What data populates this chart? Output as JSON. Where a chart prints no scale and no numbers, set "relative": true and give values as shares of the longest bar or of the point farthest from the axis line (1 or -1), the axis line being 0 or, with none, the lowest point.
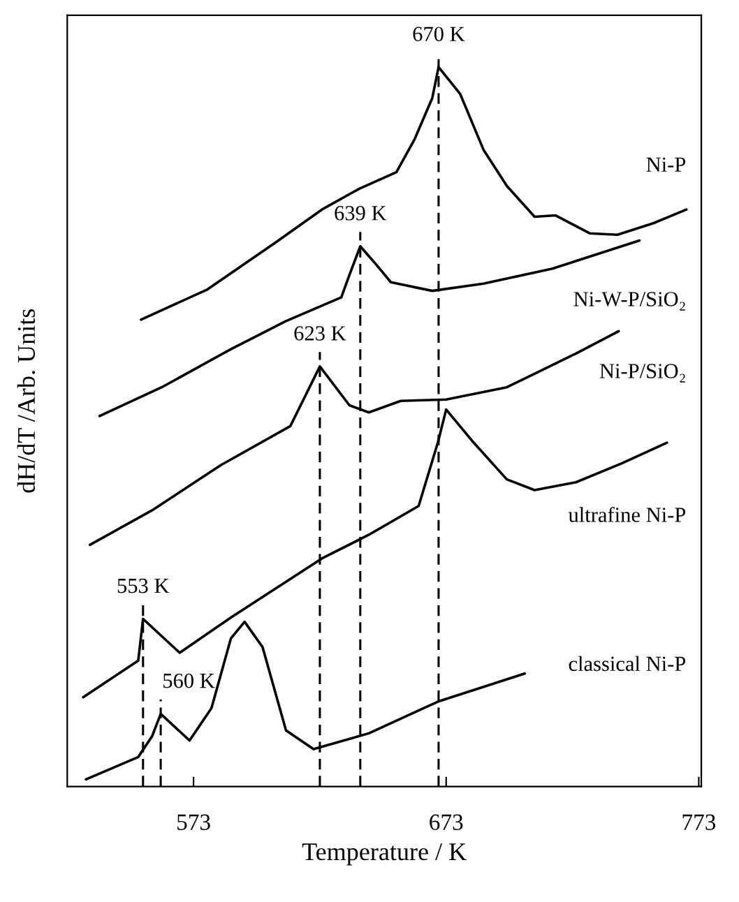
{
  "chart_data": {
    "type": "line",
    "relative": true,
    "xlabel": "Temperature / K",
    "ylabel": "dH/dT /Arb. Units",
    "xlim": [
      523,
      774
    ],
    "xticks": [
      573,
      673,
      773
    ],
    "grid": false,
    "legend": false,
    "marker": "none",
    "line_style": "solid",
    "series": [
      {
        "name": "Ni-P",
        "color": "#000000",
        "x": [
          552.2,
          578.5,
          605.8,
          623.8,
          638.6,
          653.3,
          660.4,
          667.5,
          670,
          678.5,
          687.8,
          697.0,
          708.0,
          716.2,
          729.8,
          740.8,
          755.0,
          768.1
        ],
        "values": [
          0.649,
          0.691,
          0.757,
          0.802,
          0.831,
          0.854,
          0.899,
          0.957,
          1.0,
          0.963,
          0.885,
          0.835,
          0.792,
          0.794,
          0.769,
          0.767,
          0.783,
          0.802
        ]
      },
      {
        "name": "Ni-W-P/SiO₂",
        "color": "#000000",
        "x": [
          535.8,
          560.4,
          587.8,
          609.6,
          631.5,
          634.7,
          639,
          645.7,
          651.1,
          667.5,
          687.8,
          715.1,
          749.5
        ],
        "values": [
          0.515,
          0.555,
          0.608,
          0.647,
          0.68,
          0.711,
          0.751,
          0.724,
          0.701,
          0.689,
          0.699,
          0.72,
          0.759
        ]
      },
      {
        "name": "Ni-P/SiO₂",
        "color": "#000000",
        "x": [
          532.0,
          556.6,
          583.9,
          611.3,
          623,
          634.7,
          642.4,
          655.0,
          673.0,
          697.0,
          724.4,
          741.3
        ],
        "values": [
          0.336,
          0.384,
          0.447,
          0.501,
          0.584,
          0.53,
          0.52,
          0.536,
          0.538,
          0.555,
          0.602,
          0.633
        ]
      },
      {
        "name": "ultrafine Ni-P",
        "color": "#000000",
        "x": [
          529.3,
          551.1,
          553,
          567.5,
          587.8,
          623.8,
          642.4,
          662.1,
          669.7,
          673,
          683.9,
          697.0,
          708.0,
          724.4,
          742.4,
          760.4
        ],
        "values": [
          0.124,
          0.175,
          0.233,
          0.186,
          0.235,
          0.317,
          0.35,
          0.39,
          0.478,
          0.524,
          0.478,
          0.427,
          0.412,
          0.423,
          0.449,
          0.478
        ]
      },
      {
        "name": "classical Ni-P",
        "color": "#000000",
        "x": [
          530.4,
          551.1,
          556.6,
          560,
          571.4,
          580.1,
          587.8,
          593.2,
          600.3,
          609.6,
          620.5,
          642.4,
          669.7,
          704.1
        ],
        "values": [
          0.01,
          0.041,
          0.07,
          0.101,
          0.064,
          0.109,
          0.206,
          0.229,
          0.194,
          0.078,
          0.052,
          0.074,
          0.118,
          0.157
        ]
      }
    ],
    "ref_lines": [
      {
        "axis": "x",
        "value": 670,
        "label": "670 K",
        "line_style": "dashed"
      },
      {
        "axis": "x",
        "value": 639,
        "label": "639 K",
        "line_style": "dashed"
      },
      {
        "axis": "x",
        "value": 623,
        "label": "623 K",
        "line_style": "dashed"
      },
      {
        "axis": "x",
        "value": 553,
        "label": "553 K",
        "line_style": "dashed"
      },
      {
        "axis": "x",
        "value": 560,
        "label": "560 K",
        "line_style": "dashed"
      }
    ]
  }
}
